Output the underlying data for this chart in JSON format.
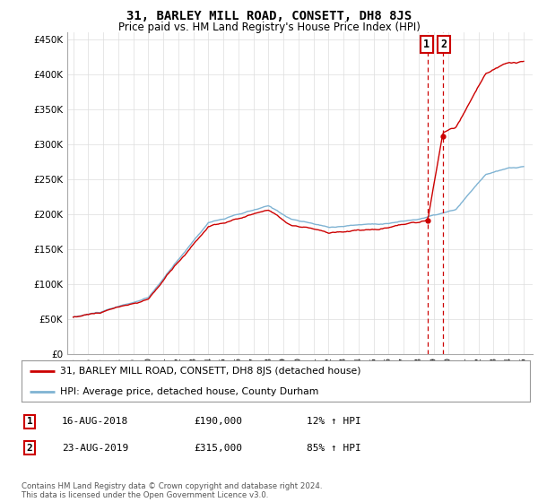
{
  "title": "31, BARLEY MILL ROAD, CONSETT, DH8 8JS",
  "subtitle": "Price paid vs. HM Land Registry's House Price Index (HPI)",
  "ylim": [
    0,
    460000
  ],
  "yticks": [
    0,
    50000,
    100000,
    150000,
    200000,
    250000,
    300000,
    350000,
    400000,
    450000
  ],
  "legend_label_red": "31, BARLEY MILL ROAD, CONSETT, DH8 8JS (detached house)",
  "legend_label_blue": "HPI: Average price, detached house, County Durham",
  "annotation1_date": "16-AUG-2018",
  "annotation1_price": "£190,000",
  "annotation1_hpi": "12% ↑ HPI",
  "annotation2_date": "23-AUG-2019",
  "annotation2_price": "£315,000",
  "annotation2_hpi": "85% ↑ HPI",
  "footer": "Contains HM Land Registry data © Crown copyright and database right 2024.\nThis data is licensed under the Open Government Licence v3.0.",
  "sale1_year": 2018.625,
  "sale1_price": 190000,
  "sale2_year": 2019.625,
  "sale2_price": 315000,
  "red_color": "#cc0000",
  "blue_color": "#7fb3d3",
  "background_color": "#ffffff",
  "grid_color": "#dddddd"
}
